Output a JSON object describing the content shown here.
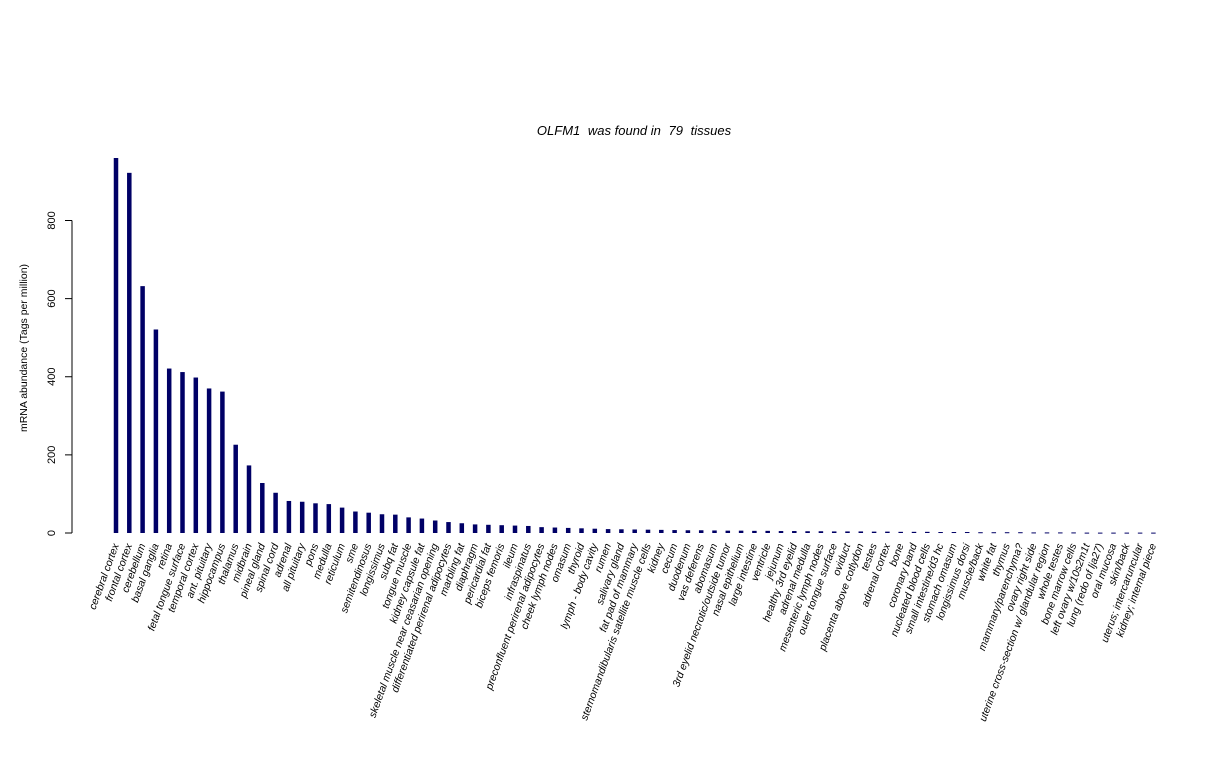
{
  "chart_data": {
    "type": "bar",
    "title_gene": "OLFM1",
    "title_middle": "was found in",
    "title_count": "79",
    "title_suffix": "tissues",
    "xlabel": "",
    "ylabel": "mRNA abundance (Tags per million)",
    "ylim": [
      0,
      960
    ],
    "yticks": [
      0,
      200,
      400,
      600,
      800
    ],
    "grid": false,
    "bar_color": "#000066",
    "categories": [
      "cerebral cortex",
      "frontal cortex",
      "cerebellum",
      "basal ganglia",
      "retina",
      "fetal tongue surface",
      "temporal cortex",
      "ant. pituitary",
      "hippocampus",
      "thalamus",
      "midbrain",
      "pineal gland",
      "spinal cord",
      "adrenal",
      "all pituitary",
      "pons",
      "medulla",
      "reticulum",
      "sme",
      "semitendinosus",
      "longissimus",
      "subq fat",
      "tongue muscle",
      "kidney capsule fat",
      "skeletal muscle near ceasarian opening",
      "differentiated perirenal adipocytes",
      "marbling fat",
      "diaphragm",
      "pericardial fat",
      "biceps femoris",
      "ileum",
      "infraspinatus",
      "preconfluent perirenal adipocytes",
      "cheek lymph nodes",
      "omasum",
      "thyroid",
      "lymph - body cavity",
      "rumen",
      "salivary gland",
      "fat pad of mammary",
      "sternomandibularis satellite muscle cells",
      "kidney",
      "cecum",
      "duodenum",
      "vas deferens",
      "abomasum",
      "3rd eyelid necrotic/outside tumor",
      "nasal epithelium",
      "large intestine",
      "ventricle",
      "jejunum",
      "healthy 3rd eyelid",
      "adrenal medulla",
      "mesenteric lymph nodes",
      "outer tongue surface",
      "oviduct",
      "placenta above cotlydon",
      "testes",
      "adrenal cortex",
      "bone",
      "coronary band",
      "nucleated blood cells",
      "small intestine/d3 hc",
      "stomach omasum",
      "longissimus dorsi",
      "muscle/back",
      "white fat",
      "thymus",
      "mammary/parenchyma?",
      "ovary right side",
      "uterine cross-section w/ glandular region",
      "whole testes",
      "bone marrow cells",
      "left ovary w/10s2m1t",
      "lung (redo of lja27)",
      "oral mucosa",
      "skin/back",
      "uterus; intercaruncular",
      "kidney; internal piece"
    ],
    "values": [
      960,
      922,
      632,
      521,
      421,
      412,
      398,
      370,
      362,
      226,
      173,
      128,
      103,
      82,
      80,
      76,
      74,
      65,
      55,
      52,
      48,
      47,
      40,
      37,
      32,
      28,
      25,
      22,
      21,
      20,
      19,
      18,
      15,
      14,
      13,
      12,
      11,
      10,
      9.5,
      9,
      8.5,
      8,
      7.5,
      7,
      7,
      6.5,
      6,
      6,
      5.5,
      5.5,
      5,
      5,
      4.5,
      4.5,
      4,
      4,
      4,
      3.5,
      3.5,
      3,
      3,
      3,
      2.5,
      2.5,
      2.5,
      2,
      2,
      2,
      2,
      1.5,
      1.5,
      1.5,
      1.5,
      1,
      1,
      1,
      1,
      1,
      1
    ]
  }
}
